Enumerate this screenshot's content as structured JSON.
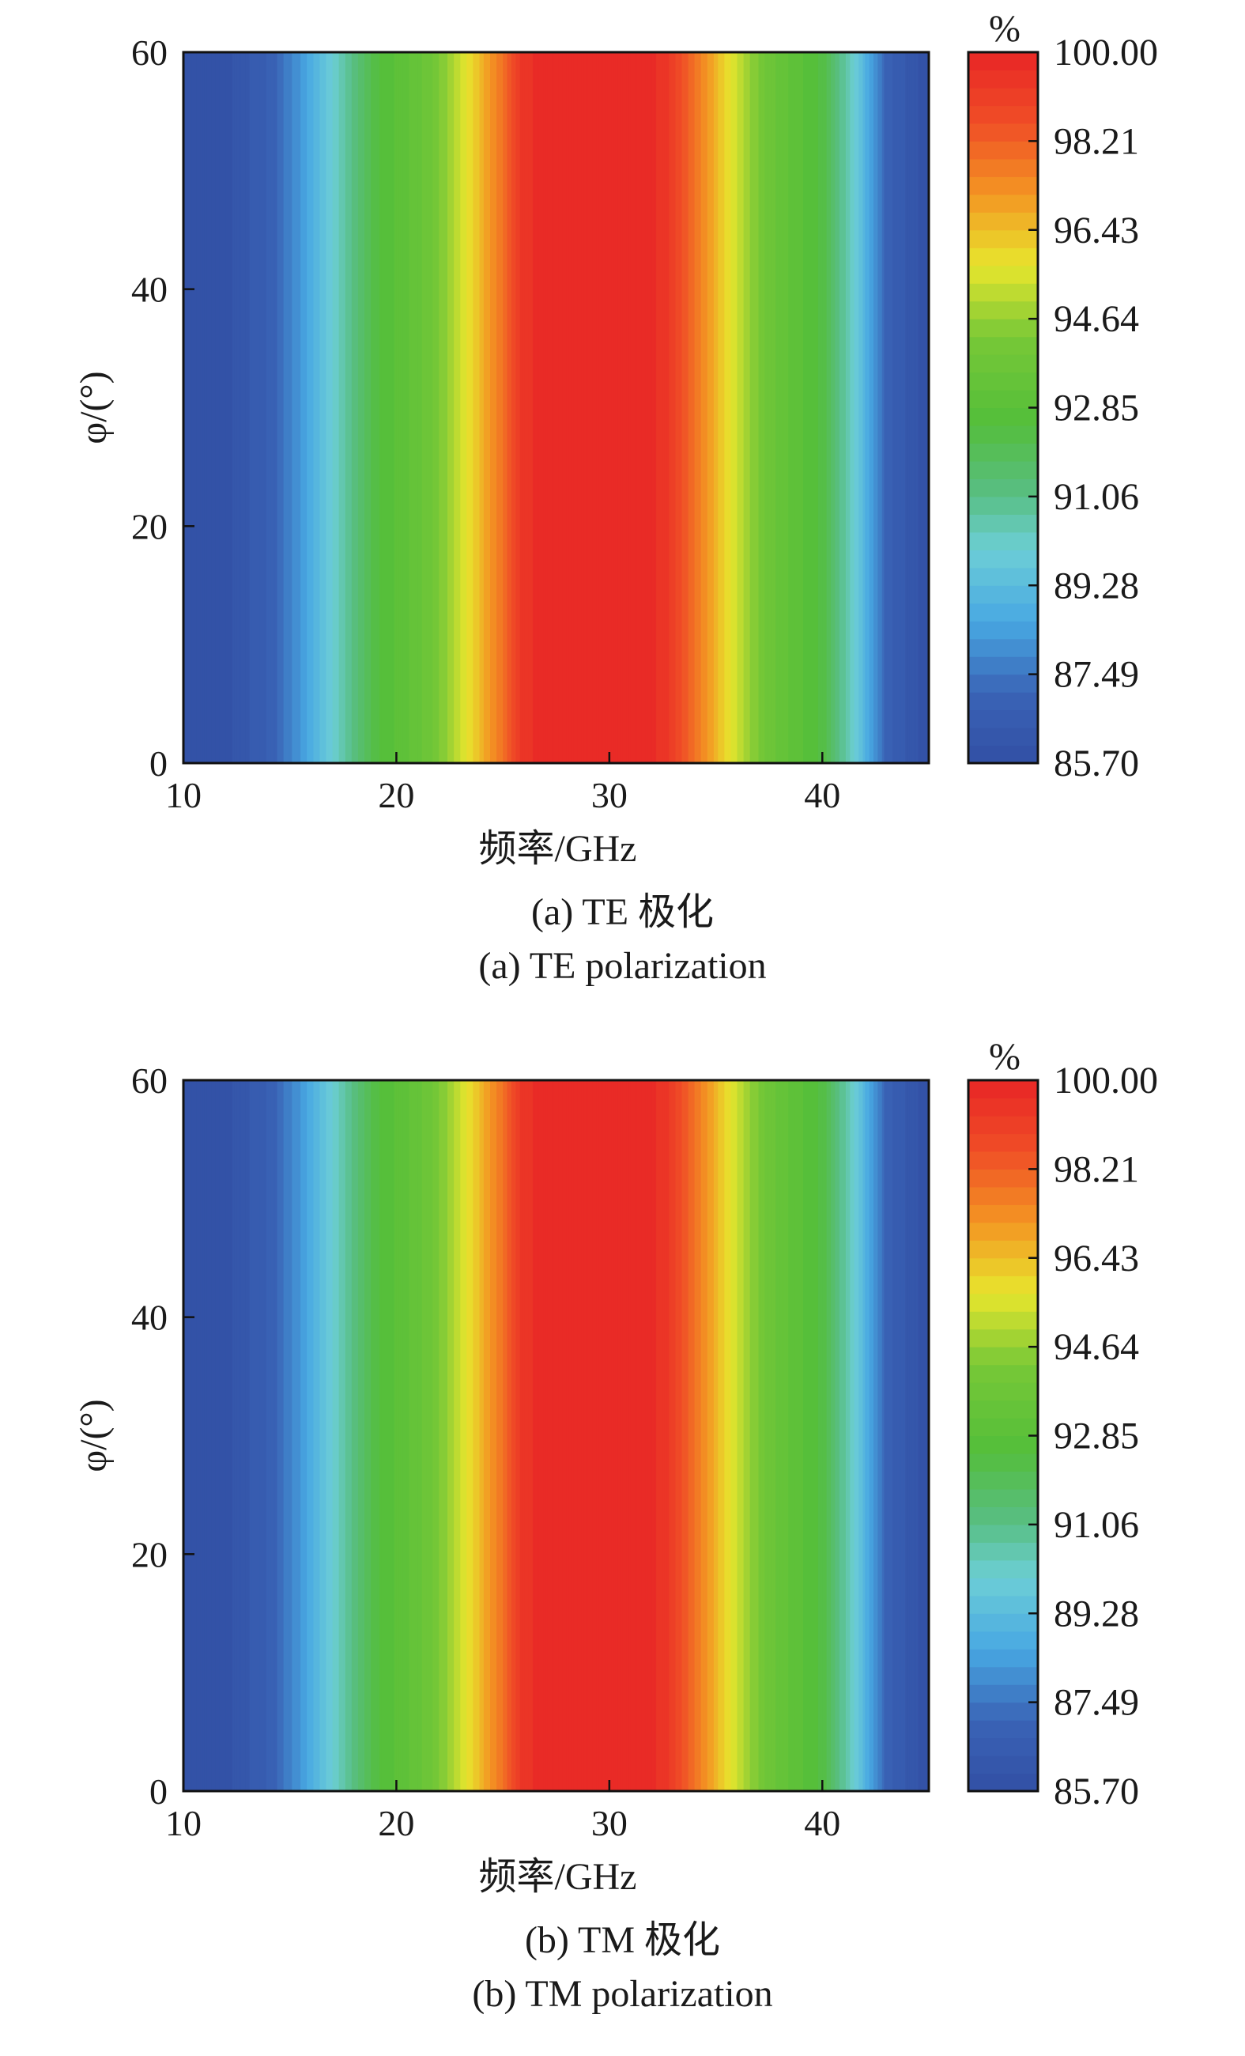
{
  "chart_data": [
    {
      "type": "heatmap",
      "caption_cn": "(a) TE 极化",
      "caption_en": "(a) TE polarization",
      "xlabel": "频率/GHz",
      "ylabel": "φ/(°)",
      "xlim": [
        10,
        45
      ],
      "ylim": [
        0,
        60
      ],
      "xticks": [
        "10",
        "20",
        "30",
        "40"
      ],
      "yticks": [
        "0",
        "20",
        "40",
        "60"
      ],
      "colorbar": {
        "unit": "%",
        "range": [
          85.7,
          100.0
        ],
        "ticks": [
          "85.70",
          "87.49",
          "89.28",
          "91.06",
          "92.85",
          "94.64",
          "96.43",
          "98.21",
          "100.00"
        ],
        "levels": 40
      },
      "pattern": "value varies with frequency only; constant across φ",
      "profile": {
        "x": [
          10,
          12,
          14,
          15.5,
          17,
          19,
          21.5,
          23,
          24,
          25,
          26,
          30,
          32.5,
          34,
          35,
          36,
          37.5,
          40,
          41.5,
          43,
          45
        ],
        "values": [
          85.7,
          85.9,
          86.8,
          88.2,
          90.0,
          92.4,
          93.7,
          95.3,
          96.6,
          97.9,
          99.6,
          100.0,
          99.6,
          97.9,
          96.6,
          95.3,
          93.7,
          92.4,
          90.0,
          87.0,
          85.7
        ]
      }
    },
    {
      "type": "heatmap",
      "caption_cn": "(b) TM 极化",
      "caption_en": "(b) TM polarization",
      "xlabel": "频率/GHz",
      "ylabel": "φ/(°)",
      "xlim": [
        10,
        45
      ],
      "ylim": [
        0,
        60
      ],
      "xticks": [
        "10",
        "20",
        "30",
        "40"
      ],
      "yticks": [
        "0",
        "20",
        "40",
        "60"
      ],
      "colorbar": {
        "unit": "%",
        "range": [
          85.7,
          100.0
        ],
        "ticks": [
          "85.70",
          "87.49",
          "89.28",
          "91.06",
          "92.85",
          "94.64",
          "96.43",
          "98.21",
          "100.00"
        ],
        "levels": 40
      },
      "pattern": "value varies with frequency only; constant across φ",
      "profile": {
        "x": [
          10,
          12,
          14,
          15.5,
          17,
          19,
          21.5,
          23,
          24,
          25,
          26,
          30,
          32.5,
          34,
          35,
          36,
          37.5,
          40,
          41.5,
          43,
          45
        ],
        "values": [
          85.7,
          85.9,
          86.8,
          88.2,
          90.0,
          92.4,
          93.7,
          95.3,
          96.6,
          97.9,
          99.6,
          100.0,
          99.6,
          97.9,
          96.6,
          95.3,
          93.7,
          92.4,
          90.0,
          87.0,
          85.7
        ]
      }
    }
  ]
}
